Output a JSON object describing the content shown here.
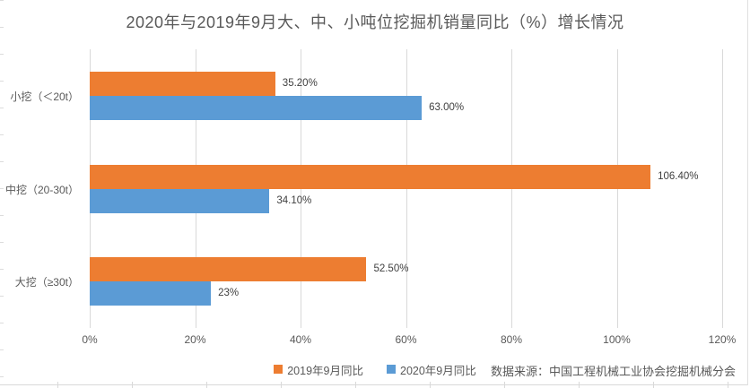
{
  "title": "2020年与2019年9月大、中、小吨位挖掘机销量同比（%）增长情况",
  "source": "数据来源：中国工程机械工业协会挖掘机械分会",
  "colors": {
    "series_2019": "#ED7D31",
    "series_2020": "#5B9BD5",
    "gridline": "#D9D9D9",
    "title_text": "#595959",
    "axis_text": "#595959",
    "data_label_text": "#404040"
  },
  "chart_data": {
    "type": "bar",
    "orientation": "horizontal",
    "title": "2020年与2019年9月大、中、小吨位挖掘机销量同比（%）增长情况",
    "categories": [
      "小挖（＜20t）",
      "中挖（20-30t）",
      "大挖（≥30t）"
    ],
    "category_keys": [
      "small-excavator",
      "medium-excavator",
      "large-excavator"
    ],
    "series": [
      {
        "key": "y2019",
        "name": "2019年9月同比",
        "color": "#ED7D31",
        "values": [
          35.2,
          106.4,
          52.5
        ],
        "labels": [
          "35.20%",
          "106.40%",
          "52.50%"
        ]
      },
      {
        "key": "y2020",
        "name": "2020年9月同比",
        "color": "#5B9BD5",
        "values": [
          63.0,
          34.1,
          23.0
        ],
        "labels": [
          "63.00%",
          "34.10%",
          "23%"
        ]
      }
    ],
    "x_axis": {
      "min": 0,
      "max": 120,
      "tick_values": [
        0,
        20,
        40,
        60,
        80,
        100,
        120
      ],
      "ticks": [
        "0%",
        "20%",
        "40%",
        "60%",
        "80%",
        "100%",
        "120%"
      ]
    },
    "grid": true,
    "legend_position": "bottom-center"
  }
}
